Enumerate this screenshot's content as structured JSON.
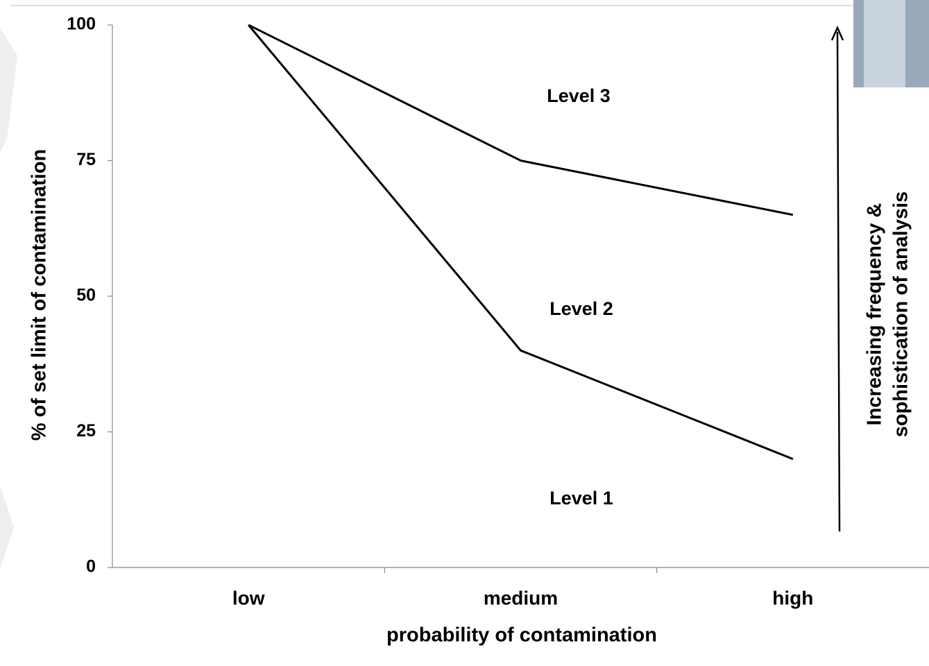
{
  "chart_data": {
    "type": "line",
    "x_label": "probability of contamination",
    "y_label": "% of set limit of contamination",
    "categories": [
      "low",
      "medium",
      "high"
    ],
    "series": [
      {
        "color": "#000000",
        "values": [
          100,
          75,
          65
        ]
      },
      {
        "color": "#000000",
        "values": [
          100,
          40,
          20
        ]
      }
    ],
    "ylim": [
      0,
      100
    ],
    "yticks": [
      0,
      25,
      50,
      75,
      100
    ],
    "grid": false,
    "annotations": [
      "Level 3",
      "Level 2",
      "Level 1",
      "Increasing frequency  &",
      "sophistication of analysis"
    ]
  }
}
